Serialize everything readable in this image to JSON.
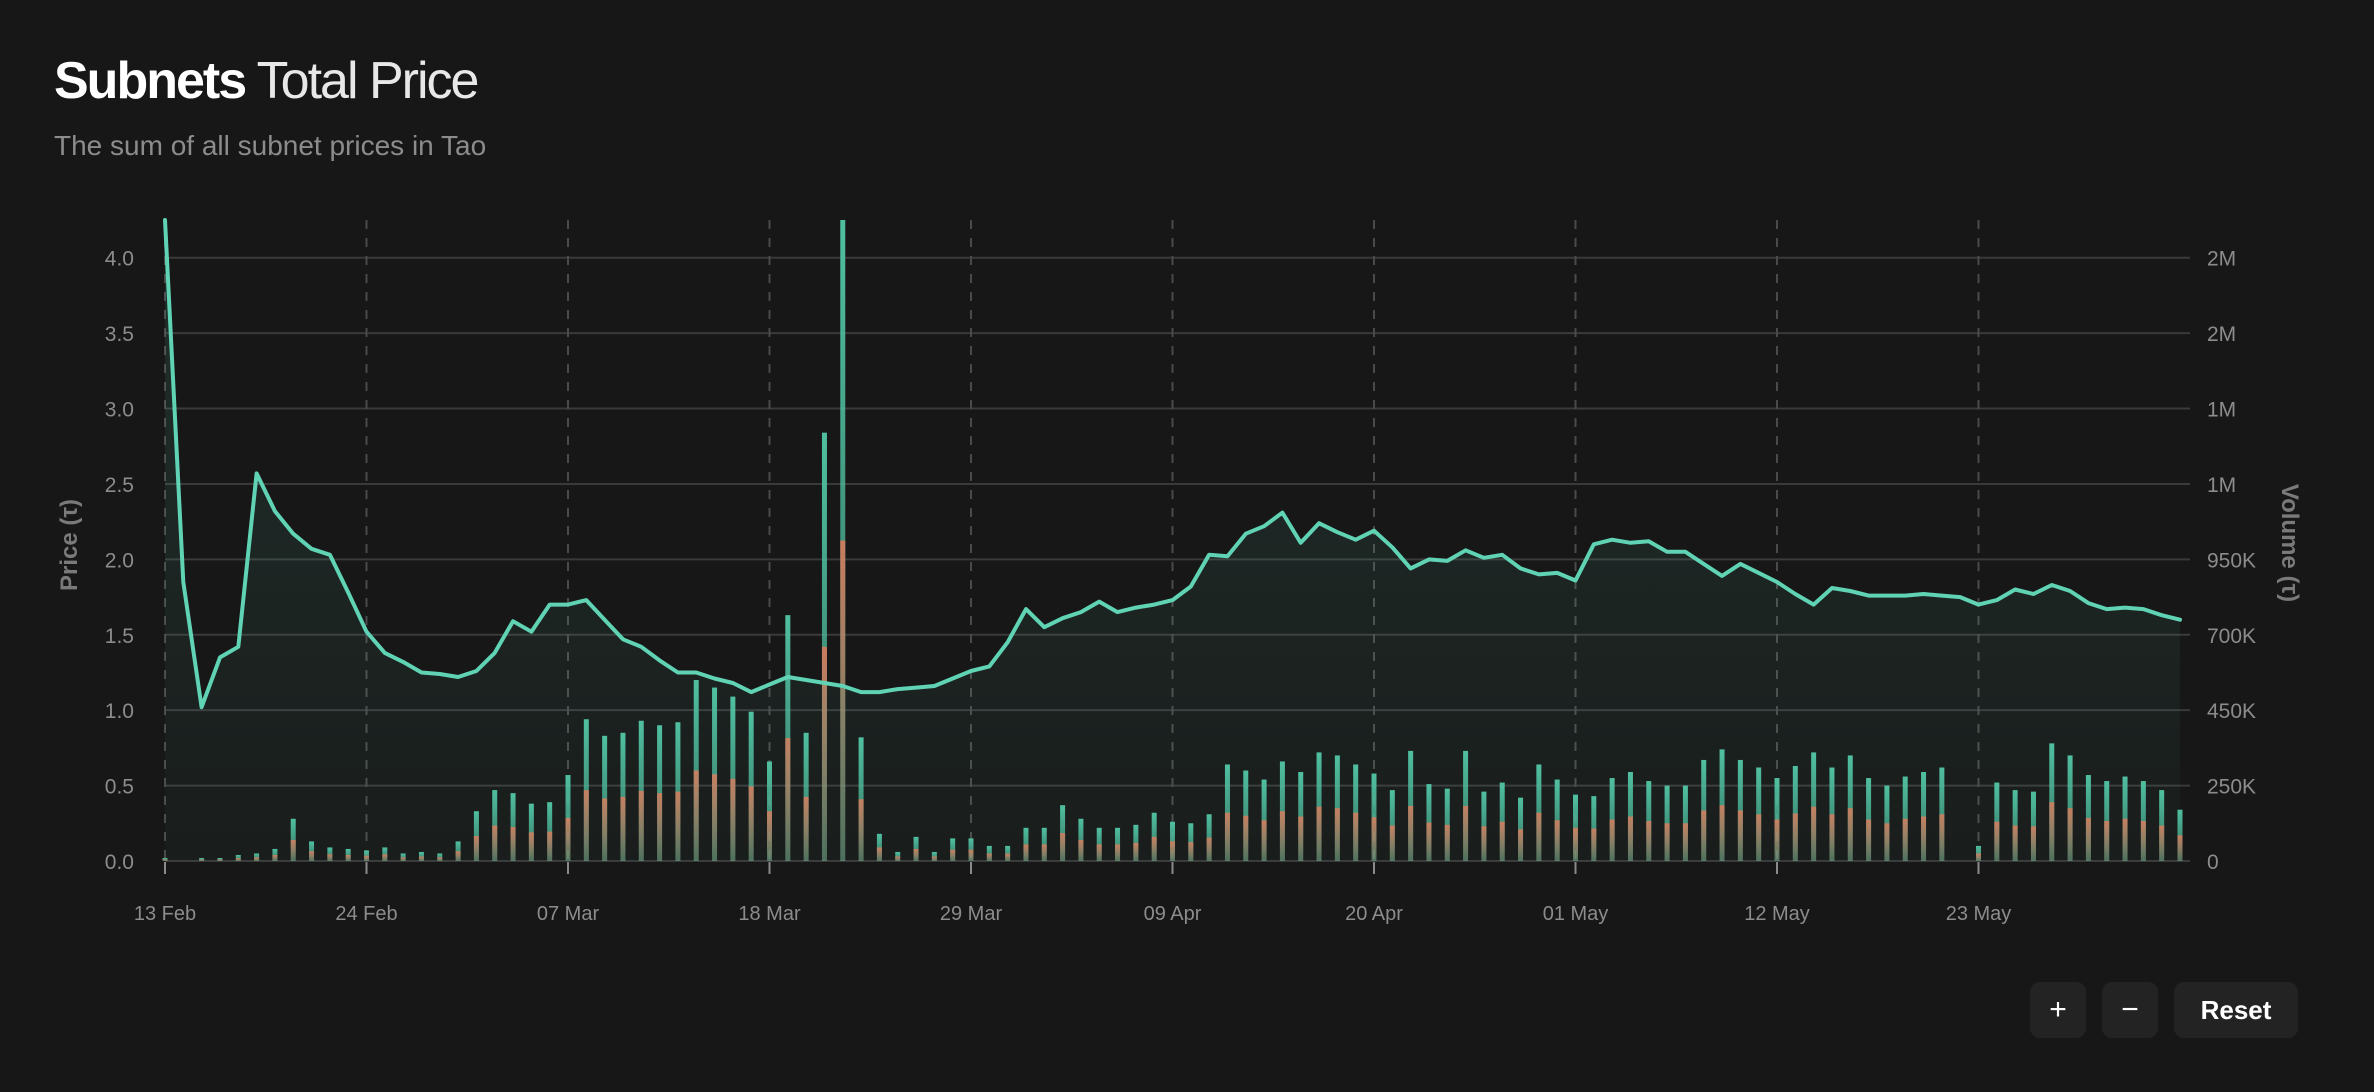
{
  "header": {
    "title_bold": "Subnets",
    "title_light": "Total Price",
    "subtitle": "The sum of all subnet prices in Tao"
  },
  "controls": {
    "zoom_in_label": "+",
    "zoom_out_label": "−",
    "reset_label": "Reset"
  },
  "colors": {
    "background": "#171717",
    "price_line": "#5fd3b3",
    "volume_buy": "#4fbf9f",
    "volume_sell": "#d9795a",
    "grid": "#3a3a3a",
    "text_muted": "#8c8c8c"
  },
  "chart_data": {
    "type": "line",
    "title": "Subnets Total Price",
    "subtitle": "The sum of all subnet prices in Tao",
    "ylabel": "Price (τ)",
    "y2label": "Volume (τ)",
    "ylim": [
      0,
      4.25
    ],
    "y_ticks": [
      "0.0",
      "0.5",
      "1.0",
      "1.5",
      "2.0",
      "2.5",
      "3.0",
      "3.5",
      "4.0"
    ],
    "y2_ticks": [
      "0",
      "250K",
      "450K",
      "700K",
      "950K",
      "1M",
      "1M",
      "2M",
      "2M"
    ],
    "x_ticks": [
      "13 Feb",
      "24 Feb",
      "07 Mar",
      "18 Mar",
      "29 Mar",
      "09 Apr",
      "20 Apr",
      "01 May",
      "12 May",
      "23 May"
    ],
    "grid": true,
    "start_date": "13 Feb",
    "series": [
      {
        "name": "Price",
        "values": [
          4.25,
          1.85,
          1.02,
          1.35,
          1.42,
          2.57,
          2.32,
          2.17,
          2.07,
          2.03,
          1.78,
          1.52,
          1.38,
          1.32,
          1.25,
          1.24,
          1.22,
          1.26,
          1.38,
          1.59,
          1.52,
          1.7,
          1.7,
          1.73,
          1.6,
          1.47,
          1.42,
          1.33,
          1.25,
          1.25,
          1.21,
          1.18,
          1.12,
          1.17,
          1.22,
          1.2,
          1.18,
          1.16,
          1.12,
          1.12,
          1.14,
          1.15,
          1.16,
          1.21,
          1.26,
          1.29,
          1.45,
          1.67,
          1.55,
          1.61,
          1.65,
          1.72,
          1.65,
          1.68,
          1.7,
          1.73,
          1.82,
          2.03,
          2.02,
          2.17,
          2.22,
          2.31,
          2.11,
          2.24,
          2.18,
          2.13,
          2.19,
          2.08,
          1.94,
          2.0,
          1.99,
          2.06,
          2.01,
          2.03,
          1.94,
          1.9,
          1.91,
          1.86,
          2.1,
          2.13,
          2.11,
          2.12,
          2.05,
          2.05,
          1.97,
          1.89,
          1.97,
          1.91,
          1.85,
          1.77,
          1.7,
          1.81,
          1.79,
          1.76,
          1.76,
          1.76,
          1.77,
          1.76,
          1.75,
          1.7,
          1.73,
          1.8,
          1.77,
          1.83,
          1.79,
          1.71,
          1.67,
          1.68,
          1.67,
          1.63,
          1.6
        ]
      },
      {
        "name": "Volume",
        "values": [
          0.02,
          0,
          0.02,
          0.02,
          0.04,
          0.05,
          0.08,
          0.28,
          0.13,
          0.09,
          0.08,
          0.07,
          0.09,
          0.05,
          0.06,
          0.05,
          0.13,
          0.33,
          0.47,
          0.45,
          0.38,
          0.39,
          0.57,
          0.94,
          0.83,
          0.85,
          0.93,
          0.9,
          0.92,
          1.2,
          1.15,
          1.09,
          0.99,
          0.66,
          1.63,
          0.85,
          2.84,
          4.25,
          0.82,
          0.18,
          0.06,
          0.16,
          0.06,
          0.15,
          0.15,
          0.1,
          0.1,
          0.22,
          0.22,
          0.37,
          0.28,
          0.22,
          0.22,
          0.24,
          0.32,
          0.26,
          0.25,
          0.31,
          0.64,
          0.6,
          0.54,
          0.66,
          0.59,
          0.72,
          0.7,
          0.64,
          0.58,
          0.47,
          0.73,
          0.51,
          0.48,
          0.73,
          0.46,
          0.52,
          0.42,
          0.64,
          0.54,
          0.44,
          0.43,
          0.55,
          0.59,
          0.53,
          0.5,
          0.5,
          0.67,
          0.74,
          0.67,
          0.62,
          0.55,
          0.63,
          0.72,
          0.62,
          0.7,
          0.55,
          0.5,
          0.56,
          0.59,
          0.62,
          0,
          0.1,
          0.52,
          0.47,
          0.46,
          0.78,
          0.7,
          0.57,
          0.53,
          0.56,
          0.53,
          0.47,
          0.34
        ]
      }
    ]
  }
}
